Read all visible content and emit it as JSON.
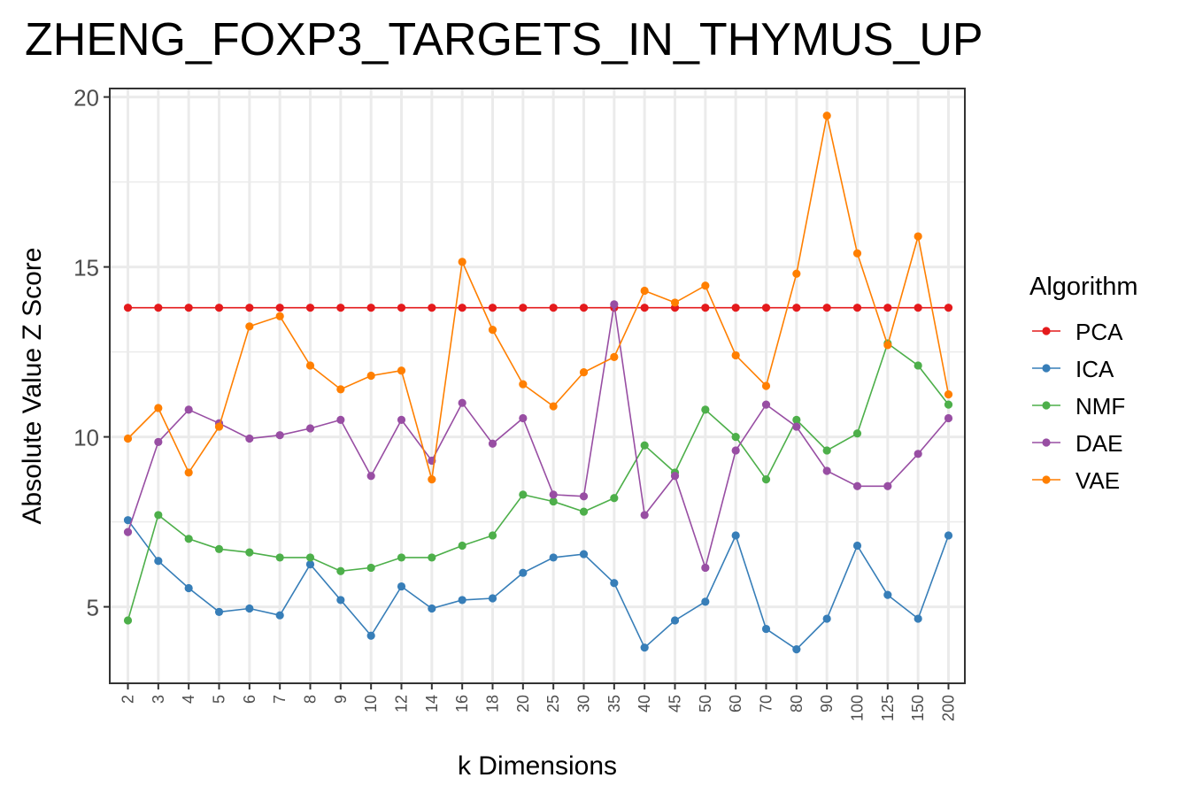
{
  "chart_data": {
    "type": "line",
    "title": "ZHENG_FOXP3_TARGETS_IN_THYMUS_UP",
    "xlabel": "k Dimensions",
    "ylabel": "Absolute Value Z Score",
    "categories": [
      "2",
      "3",
      "4",
      "5",
      "6",
      "7",
      "8",
      "9",
      "10",
      "12",
      "14",
      "16",
      "18",
      "20",
      "25",
      "30",
      "35",
      "40",
      "45",
      "50",
      "60",
      "70",
      "80",
      "90",
      "100",
      "125",
      "150",
      "200"
    ],
    "yticks": [
      5,
      10,
      15,
      20
    ],
    "ylim": [
      2.75,
      20.25
    ],
    "grid": true,
    "legend": {
      "title": "Algorithm",
      "placement": "right"
    },
    "series": [
      {
        "name": "PCA",
        "color": "#E41A1C",
        "values": [
          13.8,
          13.8,
          13.8,
          13.8,
          13.8,
          13.8,
          13.8,
          13.8,
          13.8,
          13.8,
          13.8,
          13.8,
          13.8,
          13.8,
          13.8,
          13.8,
          13.8,
          13.8,
          13.8,
          13.8,
          13.8,
          13.8,
          13.8,
          13.8,
          13.8,
          13.8,
          13.8,
          13.8
        ]
      },
      {
        "name": "ICA",
        "color": "#377EB8",
        "values": [
          7.55,
          6.35,
          5.55,
          4.85,
          4.95,
          4.75,
          6.25,
          5.2,
          4.15,
          5.6,
          4.95,
          5.2,
          5.25,
          6.0,
          6.45,
          6.55,
          5.7,
          3.8,
          4.6,
          5.15,
          7.1,
          4.35,
          3.75,
          4.65,
          6.8,
          5.35,
          4.65,
          7.1
        ]
      },
      {
        "name": "NMF",
        "color": "#4DAF4A",
        "values": [
          4.6,
          7.7,
          7.0,
          6.7,
          6.6,
          6.45,
          6.45,
          6.05,
          6.15,
          6.45,
          6.45,
          6.8,
          7.1,
          8.3,
          8.1,
          7.8,
          8.2,
          9.75,
          8.95,
          10.8,
          10.0,
          8.75,
          10.5,
          9.6,
          10.1,
          12.75,
          12.1,
          10.95
        ]
      },
      {
        "name": "DAE",
        "color": "#984EA3",
        "values": [
          7.2,
          9.85,
          10.8,
          10.4,
          9.95,
          10.05,
          10.25,
          10.5,
          8.85,
          10.5,
          9.3,
          11.0,
          9.8,
          10.55,
          8.3,
          8.25,
          13.9,
          7.7,
          8.85,
          6.15,
          9.6,
          10.95,
          10.3,
          9.0,
          8.55,
          8.55,
          9.5,
          10.55
        ]
      },
      {
        "name": "VAE",
        "color": "#FF7F00",
        "values": [
          9.95,
          10.85,
          8.95,
          10.3,
          13.25,
          13.55,
          12.1,
          11.4,
          11.8,
          11.95,
          8.75,
          15.15,
          13.15,
          11.55,
          10.9,
          11.9,
          12.35,
          14.3,
          13.95,
          14.45,
          12.4,
          11.5,
          14.8,
          19.45,
          15.4,
          12.7,
          15.9,
          11.25
        ]
      }
    ]
  }
}
